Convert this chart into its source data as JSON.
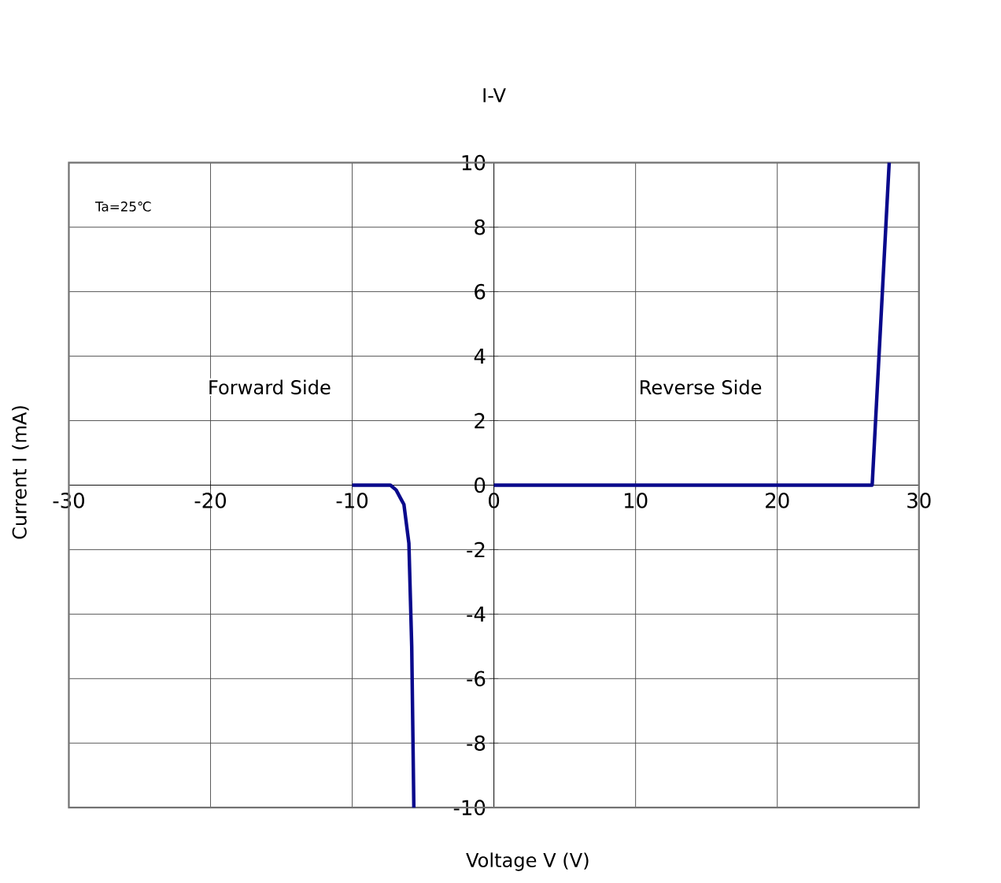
{
  "chart_data": {
    "type": "line",
    "title": "I-V",
    "xlabel": "Voltage   V (V)",
    "ylabel": "Current   I (mA)",
    "annotations": [
      "Ta=25℃",
      "Forward Side",
      "Reverse Side"
    ],
    "series": [
      {
        "color": "#0a0a8c",
        "x": [
          -10,
          -7.3,
          -6.9,
          -6.35,
          -6.0,
          -5.8,
          -5.65
        ],
        "values": [
          0,
          0,
          -0.15,
          -0.6,
          -1.8,
          -5,
          -10
        ]
      },
      {
        "color": "#0a0a8c",
        "x": [
          0,
          26.7,
          27.9
        ],
        "values": [
          0,
          0,
          10
        ]
      }
    ],
    "xlim": [
      -30,
      30
    ],
    "ylim": [
      -10,
      10
    ],
    "xticks": [
      -30,
      -20,
      -10,
      0,
      10,
      20,
      30
    ],
    "yticks": [
      -10,
      -8,
      -6,
      -4,
      -2,
      0,
      2,
      4,
      6,
      8,
      10
    ],
    "grid": true,
    "marker": "none",
    "line_style": "solid"
  }
}
